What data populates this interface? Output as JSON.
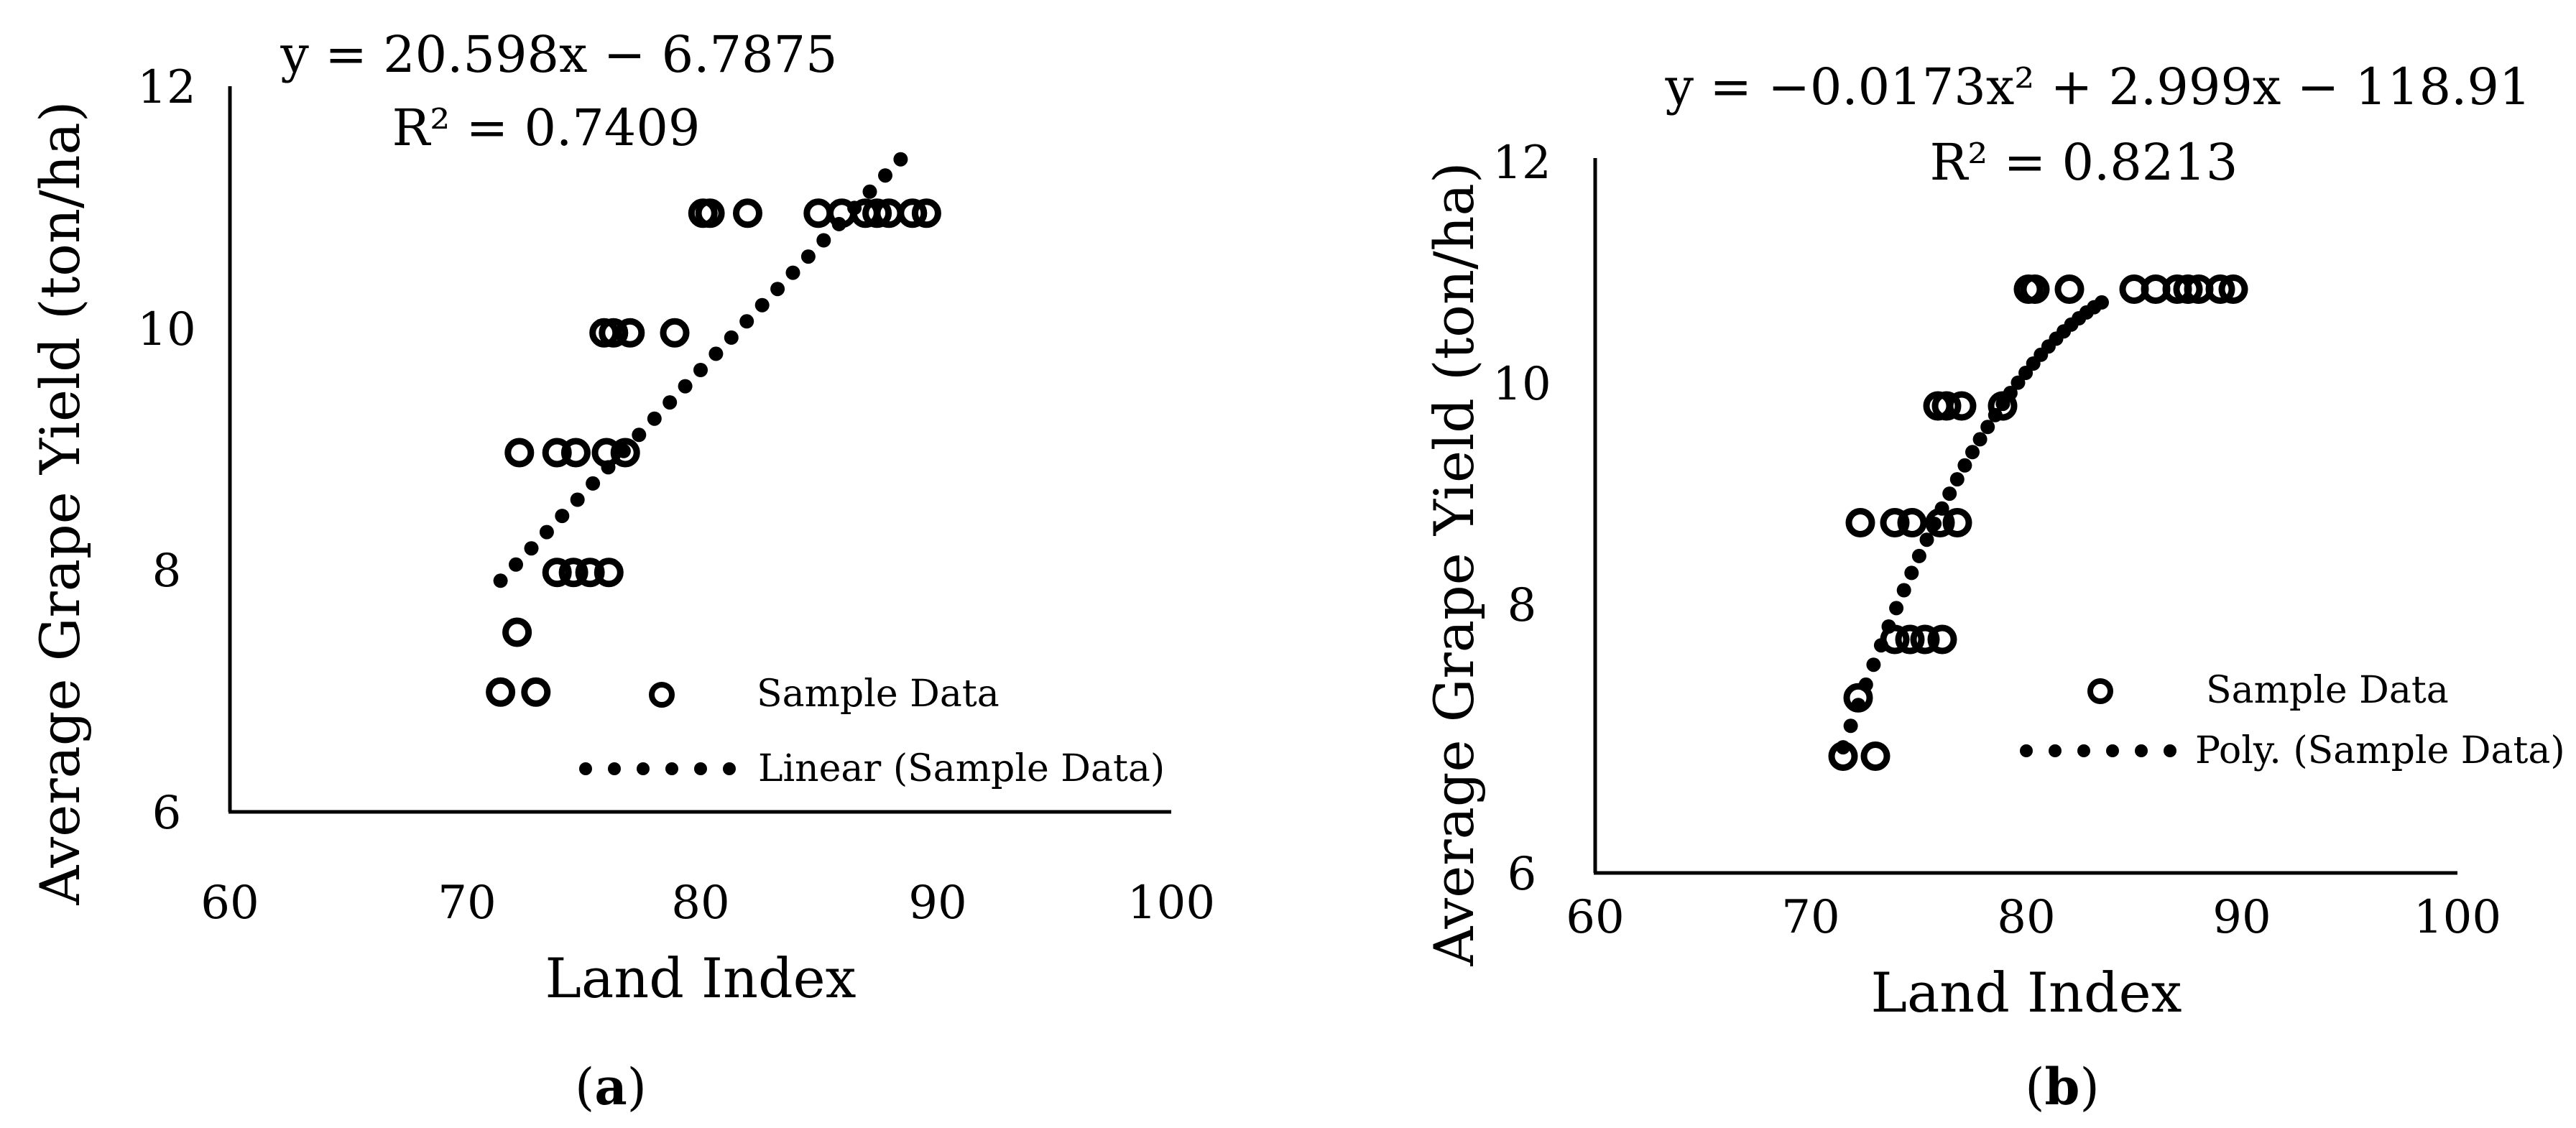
{
  "chart_data": [
    {
      "panel_label": "a",
      "type": "scatter",
      "title": "",
      "xlabel": "Land Index",
      "ylabel": "Average Grape Yield (ton/ha)",
      "xlim": [
        60,
        100
      ],
      "ylim": [
        6,
        12
      ],
      "xticks": [
        "60",
        "70",
        "80",
        "90",
        "100"
      ],
      "yticks": [
        "6",
        "8",
        "10",
        "12"
      ],
      "equation": "y = 20.598x − 6.7875",
      "r_squared": "R² = 0.7409",
      "legend_position": "bottom-right",
      "series": [
        {
          "name": "Sample Data",
          "marker": "open-circle",
          "x": [
            71.5,
            73.0,
            72.2,
            73.9,
            74.6,
            75.3,
            76.1,
            72.3,
            73.9,
            74.7,
            76.0,
            76.8,
            75.9,
            76.3,
            77.0,
            78.9,
            80.1,
            80.4,
            82.0,
            85.0,
            86.0,
            87.0,
            87.5,
            88.0,
            89.0,
            89.6
          ],
          "y": [
            7,
            7,
            7.5,
            8,
            8,
            8,
            8,
            9,
            9,
            9,
            9,
            9,
            10,
            10,
            10,
            10,
            11,
            11,
            11,
            11,
            11,
            11,
            11,
            11,
            11,
            11
          ]
        },
        {
          "name": "Linear (Sample Data)",
          "marker": "dotted-trendline",
          "fit": "linear",
          "x_range": [
            71.5,
            88.5
          ]
        }
      ]
    },
    {
      "panel_label": "b",
      "type": "scatter",
      "title": "",
      "xlabel": "Land Index",
      "ylabel": "Average Grape Yield (ton/ha)",
      "xlim": [
        60,
        100
      ],
      "ylim": [
        6,
        12
      ],
      "xticks": [
        "60",
        "70",
        "80",
        "90",
        "100"
      ],
      "yticks": [
        "6",
        "8",
        "10",
        "12"
      ],
      "equation": "y = −0.0173x² + 2.999x − 118.91",
      "r_squared": "R² = 0.8213",
      "legend_position": "bottom-right",
      "series": [
        {
          "name": "Sample Data",
          "marker": "open-circle",
          "x": [
            71.5,
            73.0,
            72.2,
            73.9,
            74.6,
            75.3,
            76.1,
            72.3,
            73.9,
            74.7,
            76.0,
            76.8,
            75.9,
            76.3,
            77.0,
            78.9,
            80.1,
            80.4,
            82.0,
            85.0,
            86.0,
            87.0,
            87.5,
            88.0,
            89.0,
            89.6
          ],
          "y": [
            7,
            7,
            7.5,
            8,
            8,
            8,
            8,
            9,
            9,
            9,
            9,
            9,
            10,
            10,
            10,
            10,
            11,
            11,
            11,
            11,
            11,
            11,
            11,
            11,
            11,
            11
          ]
        },
        {
          "name": "Poly. (Sample Data)",
          "marker": "dotted-trendline",
          "fit": "polynomial-2",
          "x_range": [
            71.5,
            83.5
          ]
        }
      ]
    }
  ]
}
